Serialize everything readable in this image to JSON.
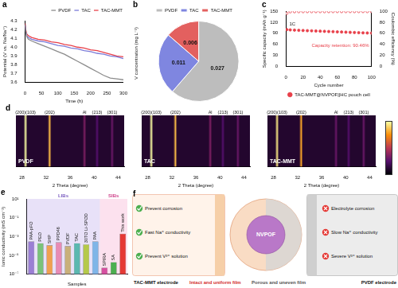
{
  "chart_data": [
    {
      "panel": "a",
      "type": "line",
      "xlabel": "Time (h)",
      "ylabel": "Potential (V vs. Na/Na⁺)",
      "xlim": [
        0,
        300
      ],
      "xticks": [
        0,
        50,
        100,
        150,
        200,
        250,
        300
      ],
      "ylim": [
        3.6,
        4.3
      ],
      "yticks": [
        3.6,
        3.7,
        3.8,
        3.9,
        {
          "value": 4,
          "label": "4.0"
        },
        4.1,
        4.2,
        4.3
      ],
      "legend": "top-right",
      "x": [
        0,
        2,
        5,
        10,
        20,
        40,
        60,
        80,
        100,
        120,
        140,
        160,
        180,
        200,
        220,
        240,
        260,
        280,
        300
      ],
      "series": [
        {
          "name": "PVDF",
          "color": "#8c8c8c",
          "values": [
            4.25,
            4.18,
            4.12,
            4.09,
            4.07,
            4.04,
            4.01,
            3.98,
            3.95,
            3.92,
            3.88,
            3.84,
            3.8,
            3.76,
            3.72,
            3.68,
            3.65,
            3.64,
            3.63
          ]
        },
        {
          "name": "TAC",
          "color": "#7b7bd8",
          "values": [
            4.25,
            4.18,
            4.13,
            4.11,
            4.09,
            4.07,
            4.06,
            4.04,
            4.02,
            4.01,
            3.99,
            3.98,
            3.96,
            3.95,
            3.93,
            3.92,
            3.9,
            3.89,
            3.87
          ]
        },
        {
          "name": "TAC-MMT",
          "color": "#e8404a",
          "values": [
            4.27,
            4.2,
            4.15,
            4.13,
            4.11,
            4.09,
            4.08,
            4.06,
            4.05,
            4.03,
            4.02,
            4.0,
            3.99,
            3.97,
            3.96,
            3.94,
            3.92,
            3.9,
            3.89
          ]
        }
      ]
    },
    {
      "panel": "b",
      "type": "pie",
      "title": "V concentration (mg L⁻¹)",
      "categories": [
        "PVDF",
        "TAC",
        "TAC-MMT"
      ],
      "values": [
        0.027,
        0.011,
        0.006
      ],
      "colors": [
        "#bdbdbd",
        "#7f86e0",
        "#e3605f"
      ],
      "data_labels": true,
      "legend": "top"
    },
    {
      "panel": "c",
      "type": "scatter",
      "xlabel": "Cycle number",
      "ylabel": "Specific capacity (mAh g⁻¹)",
      "y2label": "Coulombic efficiency (%)",
      "xlim": [
        0,
        100
      ],
      "xticks": [
        0,
        20,
        40,
        60,
        80,
        100
      ],
      "ylim": [
        0,
        150
      ],
      "yticks": [
        0,
        30,
        60,
        90,
        120,
        150
      ],
      "y2lim": [
        0,
        100
      ],
      "y2ticks": [
        0,
        20,
        40,
        60,
        80,
        100
      ],
      "annotations": [
        "1C",
        "Capacity retention: 90.46%"
      ],
      "legend": "bottom",
      "x": [
        1,
        5,
        10,
        15,
        20,
        25,
        30,
        35,
        40,
        45,
        50,
        55,
        60,
        65,
        70,
        75,
        80,
        85,
        90,
        95,
        100
      ],
      "series": [
        {
          "name": "TAC-MMT@NVPOF||HC pouch cell",
          "color": "#e8404a",
          "marker": "circle",
          "values": [
            100.0,
            99.2,
            98.6,
            98.1,
            97.6,
            97.1,
            96.7,
            96.2,
            95.8,
            95.3,
            94.8,
            94.4,
            93.9,
            93.5,
            93.0,
            92.6,
            92.1,
            91.7,
            91.2,
            90.8,
            90.5
          ]
        },
        {
          "color": "#e8404a",
          "marker": "circle_open",
          "axis": "y2",
          "values": [
            96.0,
            98.9,
            99.1,
            99.2,
            99.2,
            99.3,
            99.2,
            99.3,
            99.3,
            99.2,
            99.3,
            99.3,
            99.4,
            99.3,
            99.3,
            99.4,
            99.3,
            99.4,
            99.4,
            99.3,
            99.4
          ]
        }
      ]
    },
    {
      "panel": "d",
      "type": "heatmap",
      "title": "PVDF",
      "xlabel": "2 Theta (degree)",
      "xlim": [
        27,
        45
      ],
      "xticks": [
        28,
        32,
        36,
        40,
        44
      ],
      "tick_labels": "x",
      "peaks": {
        "x": [
          28.6,
          32.6,
          38.4,
          40.5,
          43.0
        ],
        "labels": [
          "(200)(103)",
          "(202)",
          "Al",
          "(213)",
          "(301)"
        ],
        "intensity": [
          1.0,
          0.85,
          0.35,
          0.25,
          0.3
        ],
        "clim": [
          0,
          1
        ]
      }
    },
    {
      "type": "heatmap",
      "title": "TAC",
      "xlabel": "2 Theta (degree)",
      "xlim": [
        27,
        45
      ],
      "xticks": [
        28,
        32,
        36,
        40,
        44
      ],
      "tick_labels": "x",
      "peaks": {
        "x": [
          28.6,
          32.6,
          38.4,
          40.5,
          43.0
        ],
        "labels": [
          "(200)(103)",
          "(202)",
          "Al",
          "(213)",
          "(301)"
        ],
        "intensity": [
          1.0,
          0.85,
          0.35,
          0.25,
          0.3
        ],
        "clim": [
          0,
          1
        ]
      }
    },
    {
      "type": "heatmap",
      "title": "TAC-MMT",
      "xlabel": "2 Theta (degree)",
      "xlim": [
        27,
        45
      ],
      "xticks": [
        28,
        32,
        36,
        40,
        44
      ],
      "tick_labels": "x",
      "peaks": {
        "x": [
          28.6,
          32.6,
          38.4,
          40.5,
          43.0
        ],
        "labels": [
          "(200)(103)",
          "(202)",
          "Al",
          "(213)",
          "(301)"
        ],
        "intensity": [
          0.95,
          0.8,
          0.3,
          0.25,
          0.3
        ],
        "clim": [
          0,
          1
        ]
      }
    },
    {
      "panel": "e",
      "type": "bar",
      "xlabel": "Samples",
      "ylabel": "Ionic conductivity (mS cm⁻¹)",
      "log": "y",
      "tick_labels": "y",
      "ylim": [
        1e-07,
        10
      ],
      "yticks": [
        {
          "value": 1e-07,
          "label": "10⁻⁷"
        },
        {
          "value": 1e-05,
          "label": "10⁻⁵"
        },
        {
          "value": 0.001,
          "label": "10⁻³"
        },
        {
          "value": 0.1,
          "label": "10⁻¹"
        },
        {
          "value": 10,
          "label": "10¹"
        }
      ],
      "categories": [
        "PAA-pFO",
        "PEO",
        "SHP",
        "PPD46",
        "PVDF",
        "TAC",
        "30TO Li-SPOD",
        "PAA",
        "SPIRA",
        "SA",
        "This work"
      ],
      "values": [
        0.0003,
        0.0002,
        0.00012,
        0.00025,
        0.0001,
        0.0002,
        0.00015,
        0.0003,
        5e-07,
        2e-06,
        0.002
      ],
      "colors": [
        "#9b7fd4",
        "#7ac27a",
        "#f0a050",
        "#e88bb5",
        "#c9b07a",
        "#5bb8b0",
        "#b5c94a",
        "#7fb5e8",
        "#d64fa0",
        "#4caf50",
        "#e53935"
      ],
      "groups": [
        {
          "label": "LIBs",
          "categories": [
            "PAA-pFO",
            "PEO",
            "SHP",
            "PPD46",
            "PVDF",
            "TAC",
            "30TO Li-SPOD",
            "PAA"
          ]
        },
        {
          "label": "SIBs",
          "categories": [
            "SPIRA",
            "SA",
            "This work"
          ]
        }
      ]
    }
  ],
  "diagram": {
    "panel": "f",
    "center": "NVPOF",
    "left": {
      "title": "TAC-MMT electrode",
      "film": "Intact and uniform film",
      "points": [
        "Prevent corrosion",
        "Fast Na⁺ conductivity",
        "Prevent V³⁺ solution"
      ]
    },
    "right": {
      "title": "PVDF electrode",
      "film": "Porous and uneven film",
      "points": [
        "Electrolyte corrosion",
        "Slow Na⁺ conductivity",
        "Severe V³⁺ solution"
      ]
    }
  }
}
